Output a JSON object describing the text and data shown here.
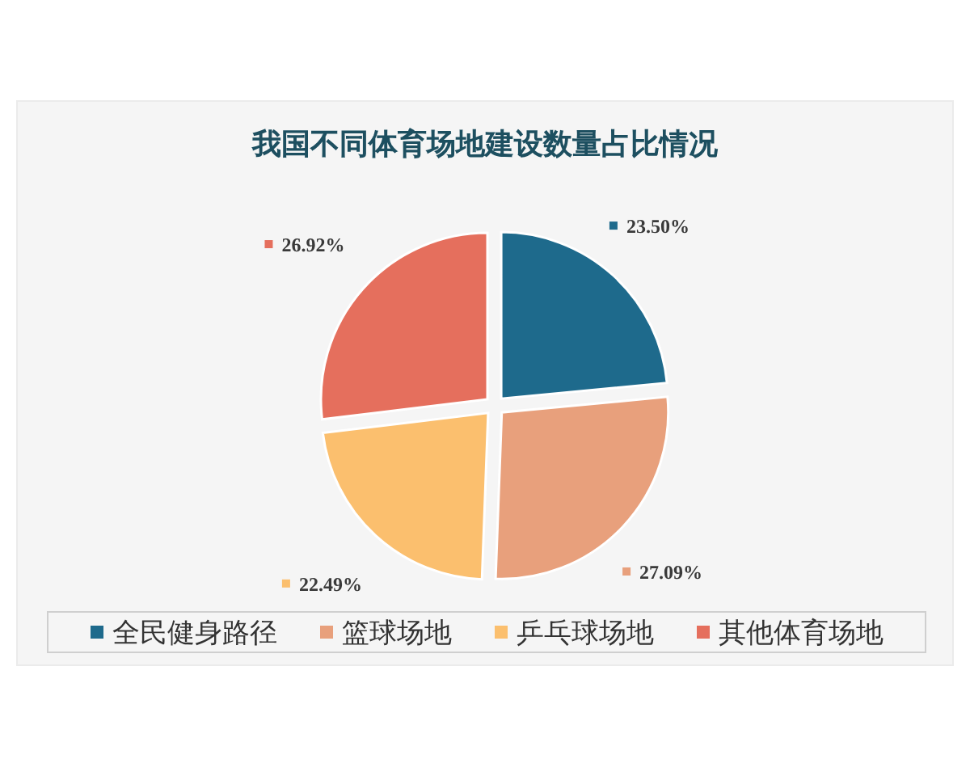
{
  "chart_data": {
    "type": "pie",
    "title": "我国不同体育场地建设数量占比情况",
    "categories": [
      "全民健身路径",
      "篮球场地",
      "乒乓球场地",
      "其他体育场地"
    ],
    "values": [
      23.5,
      27.09,
      22.49,
      26.92
    ],
    "colors": [
      "#1e6a8c",
      "#e8a07c",
      "#fbbf6e",
      "#e56f5d"
    ],
    "value_labels": [
      "23.50%",
      "27.09%",
      "22.49%",
      "26.92%"
    ],
    "legend": "bottom"
  }
}
